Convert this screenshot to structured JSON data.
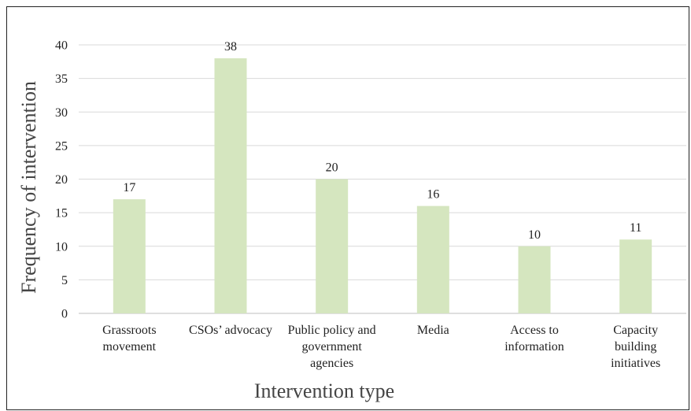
{
  "chart_data": {
    "type": "bar",
    "categories": [
      [
        "Grassroots",
        "movement"
      ],
      [
        "CSOs’ advocacy"
      ],
      [
        "Public policy and",
        "government",
        "agencies"
      ],
      [
        "Media"
      ],
      [
        "Access to",
        "information"
      ],
      [
        "Capacity",
        "building",
        "initiatives"
      ]
    ],
    "values": [
      17,
      38,
      20,
      16,
      10,
      11
    ],
    "data_labels": [
      "17",
      "38",
      "20",
      "16",
      "10",
      "11"
    ],
    "title": "",
    "xlabel": "Intervention type",
    "ylabel": "Frequency of intervention",
    "ylim": [
      0,
      40
    ],
    "yticks": [
      "0",
      "5",
      "10",
      "15",
      "20",
      "25",
      "30",
      "35",
      "40"
    ],
    "grid": true,
    "legend": "none",
    "colors": {
      "bar": "#d5e6bf",
      "grid": "#d9d9d9",
      "axis": "#bfbfbf"
    }
  }
}
